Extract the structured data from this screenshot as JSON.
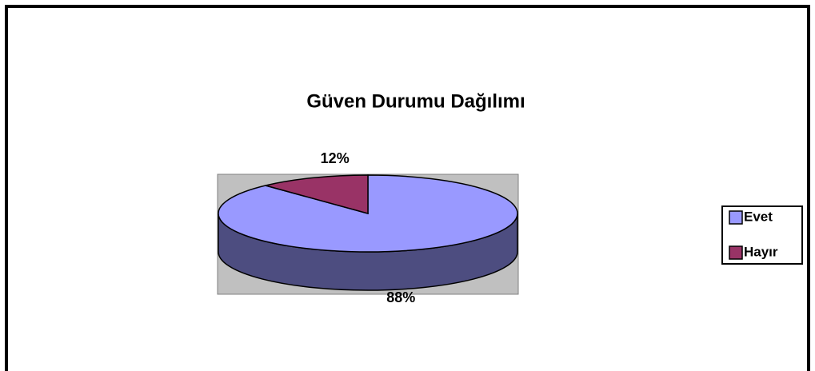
{
  "chart_data": {
    "type": "pie",
    "title": "Güven Durumu Dağılımı",
    "categories": [
      "Evet",
      "Hayır"
    ],
    "values": [
      88,
      12
    ],
    "value_labels": [
      "88%",
      "12%"
    ],
    "colors": [
      "#9999ff",
      "#993366"
    ],
    "legend": "right"
  }
}
